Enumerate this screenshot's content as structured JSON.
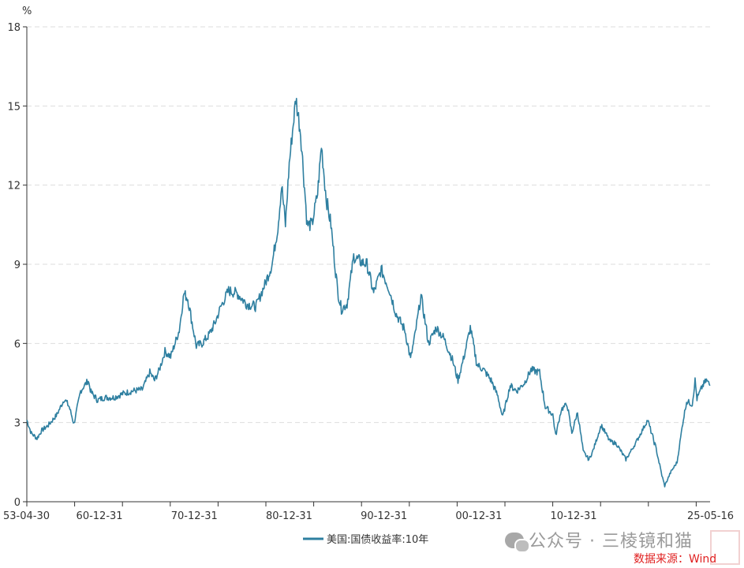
{
  "chart_data": {
    "type": "line",
    "title": "",
    "unit_label": "%",
    "ylim": [
      0,
      18
    ],
    "y_ticks": [
      "0",
      "3",
      "6",
      "9",
      "12",
      "15",
      "18"
    ],
    "x_tick_labels": [
      "53-04-30",
      "60-12-31",
      "70-12-31",
      "80-12-31",
      "90-12-31",
      "00-12-31",
      "10-12-31",
      "25-05-16"
    ],
    "x_start_year": 1953.33,
    "x_end_year": 2025.38,
    "series": [
      {
        "name": "美国:国债收益率:10年",
        "color": "#2e7fa0",
        "x": [
          1953.33,
          1953.8,
          1954.4,
          1954.9,
          1955.6,
          1956.5,
          1957.3,
          1957.8,
          1958.3,
          1959.0,
          1959.8,
          1960.1,
          1960.8,
          1961.5,
          1962.5,
          1963.5,
          1964.5,
          1965.5,
          1966.3,
          1966.8,
          1967.3,
          1967.9,
          1968.5,
          1969.4,
          1969.9,
          1970.3,
          1970.9,
          1971.2,
          1971.8,
          1972.5,
          1973.2,
          1973.8,
          1974.6,
          1975.5,
          1976.5,
          1977.5,
          1978.5,
          1979.2,
          1979.8,
          1980.2,
          1980.6,
          1981.0,
          1981.7,
          1982.2,
          1982.9,
          1983.4,
          1984.0,
          1984.4,
          1984.9,
          1985.4,
          1986.1,
          1986.5,
          1987.1,
          1987.8,
          1988.5,
          1989.2,
          1989.9,
          1990.7,
          1991.5,
          1992.3,
          1993.2,
          1993.8,
          1994.3,
          1994.9,
          1995.7,
          1996.5,
          1997.3,
          1998.2,
          1998.8,
          1999.5,
          2000.1,
          2000.8,
          2001.5,
          2002.3,
          2003.0,
          2003.5,
          2004.3,
          2005.0,
          2005.8,
          2006.5,
          2007.4,
          2008.0,
          2008.8,
          2009.1,
          2009.7,
          2010.3,
          2010.8,
          2011.4,
          2012.0,
          2012.6,
          2013.0,
          2013.9,
          2014.8,
          2015.5,
          2016.5,
          2017.5,
          2018.8,
          2019.7,
          2020.3,
          2020.6,
          2021.2,
          2021.9,
          2022.5,
          2022.9,
          2023.5,
          2023.8,
          2024.0,
          2024.6,
          2025.0,
          2025.38
        ],
        "values": [
          3.1,
          2.6,
          2.4,
          2.7,
          2.9,
          3.3,
          3.9,
          3.6,
          2.95,
          4.2,
          4.6,
          4.15,
          3.85,
          3.95,
          3.95,
          4.1,
          4.2,
          4.25,
          4.9,
          4.6,
          5.0,
          5.7,
          5.5,
          6.5,
          7.9,
          7.7,
          6.5,
          5.9,
          6.0,
          6.3,
          6.8,
          7.4,
          8.0,
          7.9,
          7.5,
          7.4,
          8.3,
          9.0,
          10.4,
          12.0,
          10.5,
          12.8,
          15.3,
          14.0,
          10.5,
          10.5,
          11.7,
          13.5,
          11.5,
          10.5,
          8.0,
          7.3,
          7.5,
          9.3,
          9.1,
          9.0,
          7.9,
          8.8,
          8.1,
          7.1,
          6.5,
          5.4,
          6.4,
          7.8,
          6.0,
          6.6,
          6.2,
          5.4,
          4.6,
          5.6,
          6.6,
          5.2,
          5.0,
          4.6,
          4.0,
          3.2,
          4.4,
          4.2,
          4.5,
          5.0,
          4.9,
          3.6,
          3.3,
          2.5,
          3.5,
          3.7,
          2.6,
          3.4,
          1.9,
          1.6,
          1.9,
          2.9,
          2.3,
          2.2,
          1.6,
          2.2,
          3.1,
          2.0,
          1.0,
          0.6,
          1.1,
          1.5,
          3.0,
          3.8,
          3.7,
          4.6,
          3.9,
          4.4,
          4.6,
          4.4
        ]
      }
    ]
  },
  "legend": {
    "label": "美国:国债收益率:10年"
  },
  "watermark": {
    "text": "公众号 · 三棱镜和猫"
  },
  "source": {
    "text": "数据来源：Wind"
  }
}
